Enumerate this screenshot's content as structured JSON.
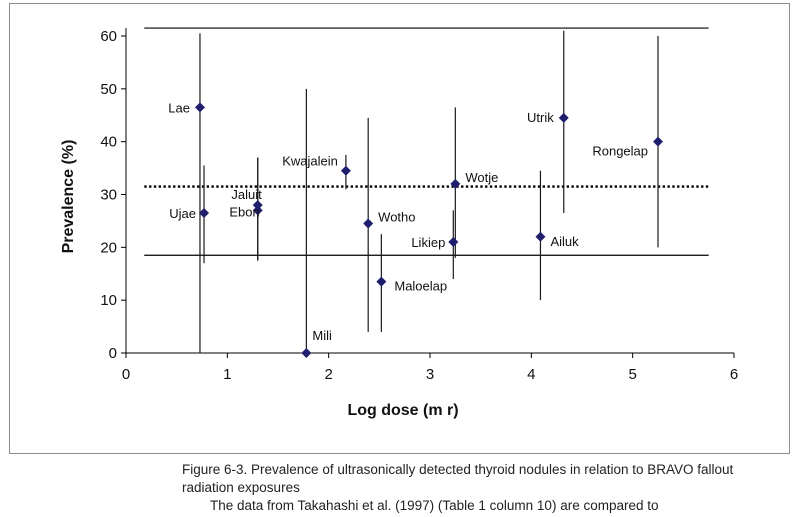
{
  "chart_data": {
    "type": "scatter",
    "xlabel": "Log dose (m r)",
    "ylabel": "Prevalence (%)",
    "xlim": [
      0,
      6
    ],
    "ylim": [
      0,
      60
    ],
    "x_ticks": [
      0,
      1,
      2,
      3,
      4,
      5,
      6
    ],
    "y_ticks": [
      0,
      10,
      20,
      30,
      40,
      50,
      60
    ],
    "grid": false,
    "legend": "none",
    "marker_color": "#1f1f6e",
    "points": [
      {
        "label": "Lae",
        "x": 0.73,
        "y": 46.5,
        "err_low": 0,
        "err_high": 60.5
      },
      {
        "label": "Ujae",
        "x": 0.77,
        "y": 26.5,
        "err_low": 17,
        "err_high": 35.5
      },
      {
        "label": "Jaluit",
        "x": 1.3,
        "y": 28,
        "err_low": 17.5,
        "err_high": 37
      },
      {
        "label": "Ebon",
        "x": 1.3,
        "y": 27,
        "err_low": 17.5,
        "err_high": 37
      },
      {
        "label": "Mili",
        "x": 1.78,
        "y": 0,
        "err_low": 0,
        "err_high": 50
      },
      {
        "label": "Kwajalein",
        "x": 2.17,
        "y": 34.5,
        "err_low": 31,
        "err_high": 37.5
      },
      {
        "label": "Wotho",
        "x": 2.39,
        "y": 24.5,
        "err_low": 4,
        "err_high": 44.5
      },
      {
        "label": "Maloelap",
        "x": 2.52,
        "y": 13.5,
        "err_low": 4,
        "err_high": 22.5
      },
      {
        "label": "Wotje",
        "x": 3.25,
        "y": 32,
        "err_low": 18,
        "err_high": 46.5
      },
      {
        "label": "Likiep",
        "x": 3.23,
        "y": 21,
        "err_low": 14,
        "err_high": 27
      },
      {
        "label": "Ailuk",
        "x": 4.09,
        "y": 22,
        "err_low": 10,
        "err_high": 34.5
      },
      {
        "label": "Utrik",
        "x": 4.32,
        "y": 44.5,
        "err_low": 26.5,
        "err_high": 61
      },
      {
        "label": "Rongelap",
        "x": 5.25,
        "y": 40,
        "err_low": 20,
        "err_high": 60
      }
    ],
    "reference_lines": [
      {
        "y": 61.5,
        "style": "solid",
        "x_from": 0.18,
        "x_to": 5.75
      },
      {
        "y": 31.5,
        "style": "dotted",
        "x_from": 0.18,
        "x_to": 5.75
      },
      {
        "y": 18.5,
        "style": "solid",
        "x_from": 0.18,
        "x_to": 5.75
      }
    ]
  },
  "caption": {
    "line1": "Figure 6-3. Prevalence of ultrasonically detected thyroid nodules in relation to BRAVO fallout",
    "line2": "radiation exposures",
    "line3": "The data from Takahashi et al. (1997) (Table 1 column 10) are compared to"
  }
}
